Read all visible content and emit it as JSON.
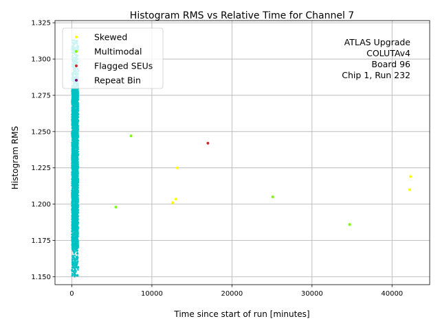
{
  "chart_data": {
    "type": "scatter",
    "title": "Histogram RMS vs Relative Time for Channel 7",
    "xlabel": "Time since start of run [minutes]",
    "ylabel": "Histogram RMS",
    "xlim": [
      -2100,
      44700
    ],
    "ylim": [
      1.1445,
      1.3265
    ],
    "xticks": [
      0,
      10000,
      20000,
      30000,
      40000
    ],
    "xtick_labels": [
      "0",
      "10000",
      "20000",
      "30000",
      "40000"
    ],
    "yticks": [
      1.15,
      1.175,
      1.2,
      1.225,
      1.25,
      1.275,
      1.3,
      1.325
    ],
    "ytick_labels": [
      "1.150",
      "1.175",
      "1.200",
      "1.225",
      "1.250",
      "1.275",
      "1.300",
      "1.325"
    ],
    "grid": true,
    "legend_position": "upper-left",
    "annotation": [
      "ATLAS Upgrade",
      "COLUTAv4",
      "Board 96",
      "Chip 1, Run 232"
    ],
    "main_cluster": {
      "color": "#00c2c2",
      "x_range": [
        0,
        800
      ],
      "y_range": [
        1.15,
        1.313
      ],
      "approx_points": 3000
    },
    "series": [
      {
        "name": "Skewed",
        "color": "#ffff00",
        "points": [
          {
            "x": 13200,
            "y": 1.225
          },
          {
            "x": 13000,
            "y": 1.2035
          },
          {
            "x": 12600,
            "y": 1.201
          },
          {
            "x": 42300,
            "y": 1.219
          },
          {
            "x": 42200,
            "y": 1.21
          }
        ]
      },
      {
        "name": "Multimodal",
        "color": "#7cfc00",
        "points": [
          {
            "x": 7400,
            "y": 1.247
          },
          {
            "x": 5500,
            "y": 1.198
          },
          {
            "x": 25100,
            "y": 1.205
          },
          {
            "x": 34700,
            "y": 1.186
          }
        ]
      },
      {
        "name": "Flagged SEUs",
        "color": "#d62728",
        "points": [
          {
            "x": 17000,
            "y": 1.242
          }
        ]
      },
      {
        "name": "Repeat Bin",
        "color": "#800080",
        "points": []
      }
    ]
  }
}
